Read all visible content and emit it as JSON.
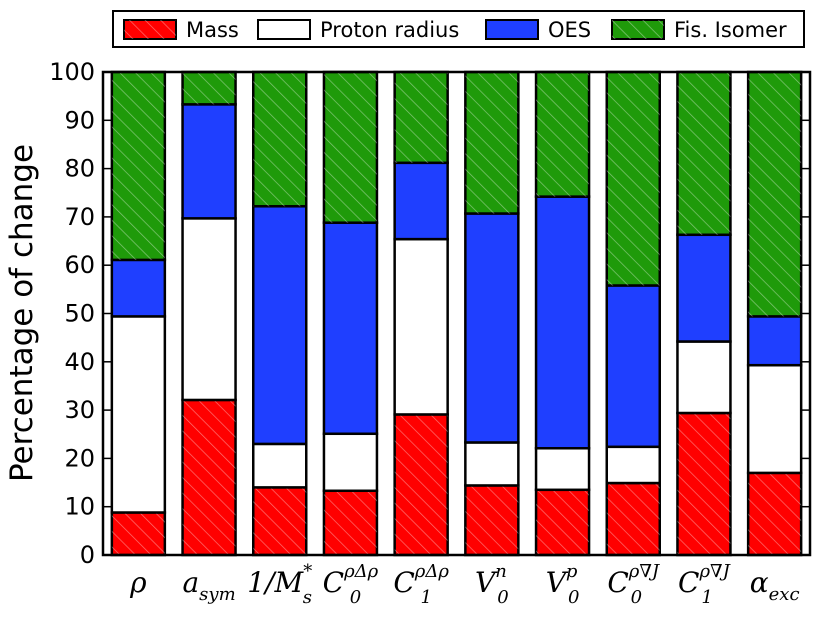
{
  "chart_data": {
    "type": "bar",
    "stacked": true,
    "ylabel": "Percentage of change",
    "xlabel": "",
    "ylim": [
      0,
      100
    ],
    "yticks": [
      0,
      10,
      20,
      30,
      40,
      50,
      60,
      70,
      80,
      90,
      100
    ],
    "grid": false,
    "legend_position": "top",
    "categories": [
      {
        "id": "rho",
        "base": "ρ",
        "sub": "",
        "sup": ""
      },
      {
        "id": "a_sym",
        "base": "a",
        "sub": "sym",
        "sup": ""
      },
      {
        "id": "inv_ms",
        "base": "1/M",
        "sub": "s",
        "sup": "*"
      },
      {
        "id": "c0_drho",
        "base": "C",
        "sub": "0",
        "sup": "ρΔρ"
      },
      {
        "id": "c1_drho",
        "base": "C",
        "sub": "1",
        "sup": "ρΔρ"
      },
      {
        "id": "v0n",
        "base": "V",
        "sub": "0",
        "sup": "n"
      },
      {
        "id": "v0p",
        "base": "V",
        "sub": "0",
        "sup": "p"
      },
      {
        "id": "c0_nablaj",
        "base": "C",
        "sub": "0",
        "sup": "ρ∇J"
      },
      {
        "id": "c1_nablaj",
        "base": "C",
        "sub": "1",
        "sup": "ρ∇J"
      },
      {
        "id": "a_exc",
        "base": "α",
        "sub": "exc",
        "sup": ""
      }
    ],
    "series": [
      {
        "name": "Mass",
        "color": "#ff0000",
        "hatch": true,
        "values": [
          8.8,
          32.1,
          14.0,
          13.3,
          29.1,
          14.4,
          13.5,
          14.9,
          29.4,
          17.0
        ]
      },
      {
        "name": "Proton radius",
        "color": "#ffffff",
        "hatch": false,
        "values": [
          40.6,
          37.6,
          9.0,
          11.8,
          36.3,
          8.9,
          8.6,
          7.5,
          14.8,
          22.3
        ]
      },
      {
        "name": "OES",
        "color": "#1f3fff",
        "hatch": false,
        "values": [
          11.7,
          23.6,
          49.2,
          43.7,
          15.8,
          47.4,
          52.1,
          33.4,
          22.1,
          10.1
        ]
      },
      {
        "name": "Fis. Isomer",
        "color": "#1f9a0a",
        "hatch": true,
        "values": [
          38.9,
          6.7,
          27.8,
          31.2,
          18.8,
          29.3,
          25.8,
          44.2,
          33.7,
          50.6
        ]
      }
    ]
  }
}
